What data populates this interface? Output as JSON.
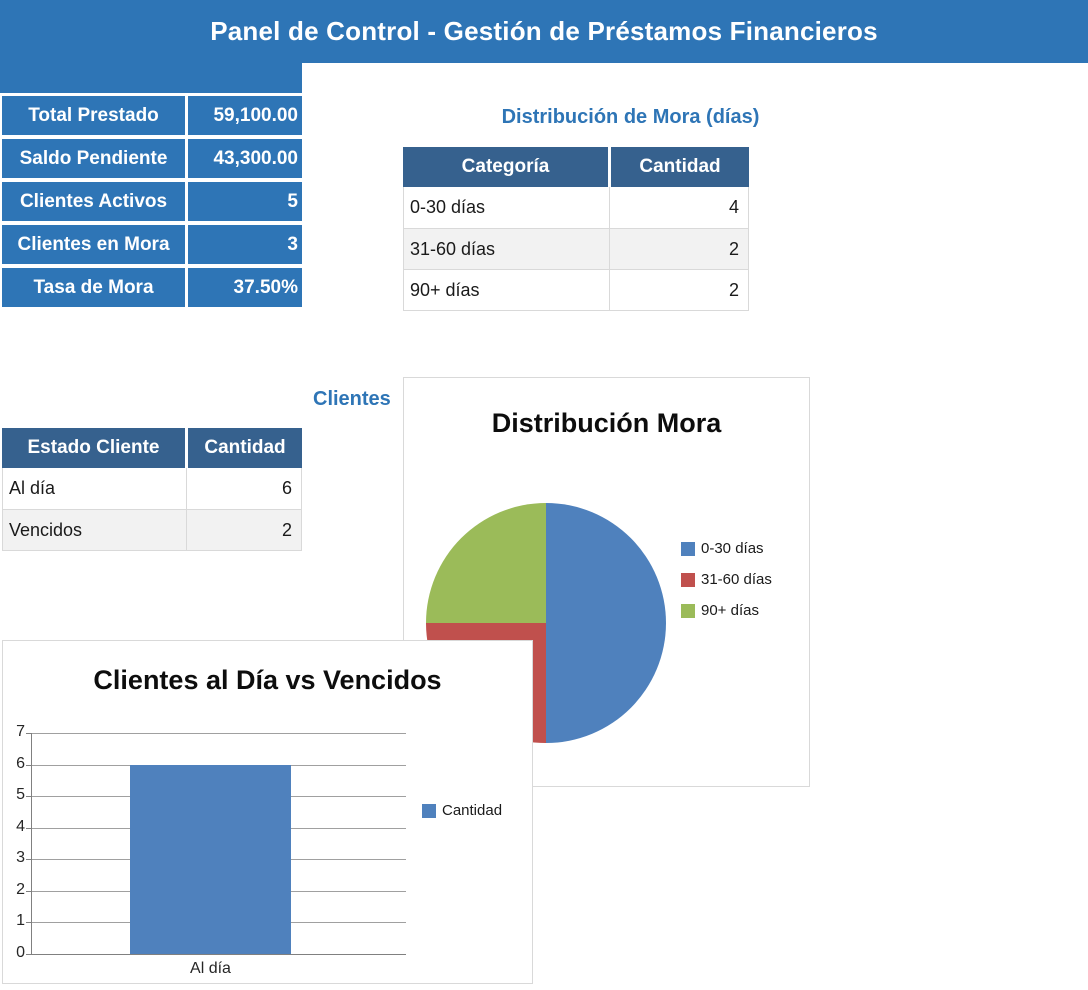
{
  "header": {
    "title": "Panel de Control - Gestión de Préstamos Financieros"
  },
  "summary_table": {
    "rows": [
      {
        "label": "Total Prestado",
        "value": "59,100.00"
      },
      {
        "label": "Saldo Pendiente",
        "value": "43,300.00"
      },
      {
        "label": "Clientes Activos",
        "value": "5"
      },
      {
        "label": "Clientes en Mora",
        "value": "3"
      },
      {
        "label": "Tasa de Mora",
        "value": "37.50%"
      }
    ]
  },
  "mora_table": {
    "title": "Distribución de Mora (días)",
    "headers": [
      "Categoría",
      "Cantidad"
    ],
    "rows": [
      [
        "0-30 días",
        "4"
      ],
      [
        "31-60 días",
        "2"
      ],
      [
        "90+ días",
        "2"
      ]
    ]
  },
  "clientes_table": {
    "visible_title": "Clientes",
    "headers": [
      "Estado Cliente",
      "Cantidad"
    ],
    "rows": [
      [
        "Al día",
        "6"
      ],
      [
        "Vencidos",
        "2"
      ]
    ]
  },
  "chart_data": [
    {
      "type": "pie",
      "title": "Distribución Mora",
      "labels": [
        "0-30 días",
        "31-60 días",
        "90+ días"
      ],
      "values": [
        4,
        2,
        2
      ],
      "colors": [
        "#4F81BD",
        "#C0504D",
        "#9BBB59"
      ],
      "legend_position": "right",
      "start_angle_deg": -90,
      "note_occlusion": "lower-left (red) slice partly hidden behind overlapping bar-chart window"
    },
    {
      "type": "bar",
      "title": "Clientes al Día vs Vencidos",
      "categories": [
        "Al día"
      ],
      "series": [
        {
          "name": "Cantidad",
          "values": [
            6
          ]
        }
      ],
      "bar_color": "#4F81BD",
      "ylim": [
        0,
        7
      ],
      "yticks": [
        0,
        1,
        2,
        3,
        4,
        5,
        6,
        7
      ],
      "grid": true,
      "legend_position": "right"
    }
  ],
  "colors": {
    "banner_blue": "#2E75B6",
    "table_header_navy": "#36618E",
    "accent_title_blue": "#2E75B6",
    "row_alt_gray": "#F2F2F2",
    "cell_border_gray": "#D9D9D9",
    "grid_gray": "#A0A0A0",
    "axis_gray": "#808080",
    "series_blue": "#4F81BD",
    "series_red": "#C0504D",
    "series_green": "#9BBB59"
  }
}
